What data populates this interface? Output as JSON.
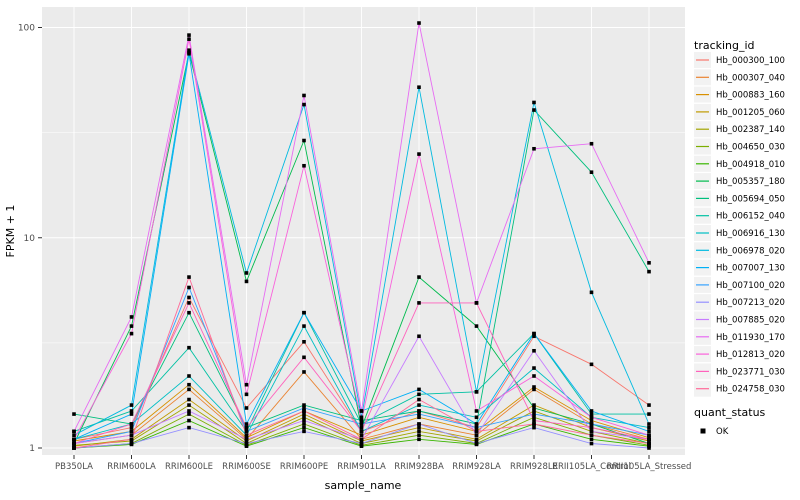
{
  "chart_data": {
    "type": "line",
    "title": "",
    "xlabel": "sample_name",
    "ylabel": "FPKM + 1",
    "yscale": "log10",
    "ylim": [
      1,
      125
    ],
    "yticks": [
      1,
      10,
      100
    ],
    "ytick_labels": [
      "1",
      "10",
      "100"
    ],
    "yminor": [
      3.162,
      31.62
    ],
    "grid": true,
    "panel_bg": "#ebebeb",
    "grid_color": "#ffffff",
    "point_color": "#000000",
    "point_shape": "square",
    "legend_position": "right",
    "legend_title": "tracking_id",
    "categories": [
      "PB350LA",
      "RRIM600LA",
      "RRIM600LE",
      "RRIM600SE",
      "RRIM600PE",
      "RRIM901LA",
      "RRIM928BA",
      "RRIM928LA",
      "RRIM928LE",
      "RRII105LA_Control",
      "RRII105LA_Stressed"
    ],
    "series": [
      {
        "name": "Hb_000300_100",
        "color": "#F8766D",
        "values": [
          1.1,
          1.25,
          5.2,
          1.55,
          3.2,
          1.2,
          1.5,
          1.25,
          3.4,
          2.5,
          1.6
        ]
      },
      {
        "name": "Hb_000307_040",
        "color": "#EA8331",
        "values": [
          1.05,
          1.15,
          1.9,
          1.1,
          2.3,
          1.1,
          1.3,
          1.15,
          1.9,
          1.3,
          1.1
        ]
      },
      {
        "name": "Hb_000883_160",
        "color": "#D89000",
        "values": [
          1.08,
          1.2,
          2.0,
          1.12,
          1.5,
          1.15,
          1.4,
          1.2,
          1.95,
          1.35,
          1.12
        ]
      },
      {
        "name": "Hb_001205_060",
        "color": "#C09B00",
        "values": [
          1.02,
          1.1,
          1.7,
          1.08,
          1.45,
          1.08,
          1.25,
          1.1,
          1.6,
          1.25,
          1.08
        ]
      },
      {
        "name": "Hb_002387_140",
        "color": "#A3A500",
        "values": [
          1.03,
          1.08,
          1.6,
          1.05,
          1.4,
          1.05,
          1.2,
          1.08,
          1.5,
          1.2,
          1.05
        ]
      },
      {
        "name": "Hb_004650_030",
        "color": "#7CAE00",
        "values": [
          1.0,
          1.05,
          1.45,
          1.03,
          1.3,
          1.03,
          1.15,
          1.05,
          1.4,
          1.15,
          1.03
        ]
      },
      {
        "name": "Hb_004918_010",
        "color": "#39B600",
        "values": [
          1.0,
          1.04,
          1.35,
          1.02,
          1.25,
          1.02,
          1.1,
          1.04,
          1.3,
          1.1,
          1.02
        ]
      },
      {
        "name": "Hb_005357_180",
        "color": "#00BB4E",
        "values": [
          1.05,
          3.8,
          76.0,
          6.2,
          29.0,
          1.25,
          6.5,
          3.8,
          1.55,
          1.3,
          1.05
        ]
      },
      {
        "name": "Hb_005694_050",
        "color": "#00BF7D",
        "values": [
          1.45,
          1.3,
          4.4,
          1.25,
          1.6,
          1.35,
          1.5,
          1.3,
          40.5,
          20.5,
          6.9
        ]
      },
      {
        "name": "Hb_006152_040",
        "color": "#00C1A3",
        "values": [
          1.2,
          1.5,
          3.0,
          1.2,
          4.4,
          1.3,
          1.8,
          1.85,
          3.5,
          1.45,
          1.45
        ]
      },
      {
        "name": "Hb_006916_130",
        "color": "#00BFC4",
        "values": [
          1.1,
          1.3,
          2.2,
          1.15,
          3.8,
          1.2,
          1.6,
          1.4,
          2.4,
          1.4,
          1.25
        ]
      },
      {
        "name": "Hb_006978_020",
        "color": "#00BAE0",
        "values": [
          1.15,
          1.6,
          78.0,
          6.8,
          43.0,
          1.4,
          52.0,
          1.85,
          44.0,
          5.5,
          1.3
        ]
      },
      {
        "name": "Hb_007007_130",
        "color": "#00B0F6",
        "values": [
          1.1,
          1.45,
          75.0,
          1.3,
          4.4,
          1.5,
          1.9,
          1.3,
          3.5,
          1.5,
          1.2
        ]
      },
      {
        "name": "Hb_007100_020",
        "color": "#35A2FF",
        "values": [
          1.05,
          1.2,
          5.8,
          1.2,
          1.55,
          1.3,
          1.45,
          1.25,
          1.45,
          1.3,
          1.15
        ]
      },
      {
        "name": "Hb_007213_020",
        "color": "#9590FF",
        "values": [
          1.0,
          1.05,
          1.25,
          1.05,
          1.2,
          1.05,
          1.3,
          1.05,
          1.25,
          1.05,
          1.0
        ]
      },
      {
        "name": "Hb_007885_020",
        "color": "#C77CFF",
        "values": [
          1.05,
          1.15,
          1.5,
          1.1,
          1.35,
          1.1,
          3.4,
          1.15,
          2.9,
          1.2,
          1.1
        ]
      },
      {
        "name": "Hb_011930_170",
        "color": "#E76BF3",
        "values": [
          1.2,
          4.2,
          92.0,
          2.0,
          47.5,
          1.5,
          105.0,
          4.9,
          26.5,
          28.0,
          7.6
        ]
      },
      {
        "name": "Hb_012813_020",
        "color": "#FA62DB",
        "values": [
          1.1,
          3.5,
          88.0,
          1.8,
          22.0,
          1.35,
          25.0,
          1.5,
          2.2,
          1.4,
          1.15
        ]
      },
      {
        "name": "Hb_023771_030",
        "color": "#FF62BC",
        "values": [
          1.05,
          1.3,
          4.9,
          1.25,
          2.7,
          1.2,
          4.9,
          4.9,
          1.35,
          1.25,
          1.1
        ]
      },
      {
        "name": "Hb_024758_030",
        "color": "#FF6A98",
        "values": [
          1.0,
          1.1,
          6.5,
          1.15,
          1.5,
          1.1,
          1.7,
          1.2,
          1.3,
          1.15,
          1.05
        ]
      }
    ],
    "legend2_title": "quant_status",
    "legend2_items": [
      {
        "label": "OK",
        "marker": "square",
        "color": "#000000"
      }
    ]
  }
}
